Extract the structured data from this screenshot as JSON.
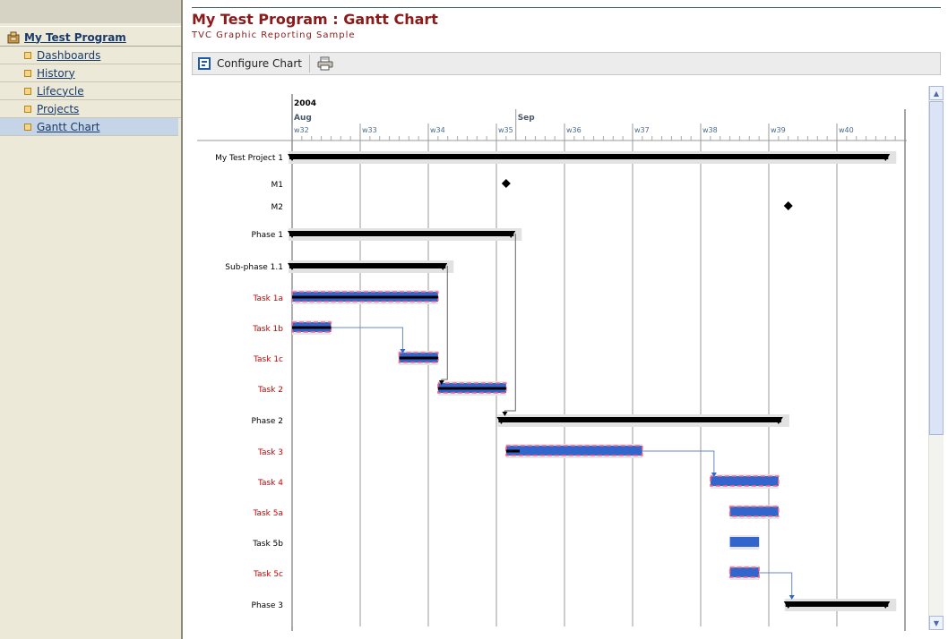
{
  "sidebar": {
    "root": {
      "label": "My Test Program",
      "icon": "program-icon"
    },
    "items": [
      {
        "label": "Dashboards",
        "active": false
      },
      {
        "label": "History",
        "active": false
      },
      {
        "label": "Lifecycle",
        "active": false
      },
      {
        "label": "Projects",
        "active": false
      },
      {
        "label": "Gantt Chart",
        "active": true
      }
    ]
  },
  "header": {
    "title": "My Test Program : Gantt Chart",
    "subtitle": "TVC Graphic Reporting Sample"
  },
  "toolbar": {
    "configure_label": "Configure Chart",
    "configure_icon": "configure-chart-icon",
    "print_icon": "print-icon"
  },
  "colors": {
    "title": "#8b1a1a",
    "task_bar": "#3366cc",
    "task_border": "#ff6688",
    "red_label": "#cc0000",
    "summary": "#000000"
  },
  "chart_data": {
    "type": "gantt",
    "year": "2004",
    "months": [
      {
        "label": "Aug",
        "start": 0
      },
      {
        "label": "Sep",
        "start": 23
      }
    ],
    "weeks": [
      {
        "label": "w32",
        "start": 0
      },
      {
        "label": "w33",
        "start": 7
      },
      {
        "label": "w34",
        "start": 14
      },
      {
        "label": "w35",
        "start": 21
      },
      {
        "label": "w36",
        "start": 28
      },
      {
        "label": "w37",
        "start": 35
      },
      {
        "label": "w38",
        "start": 42
      },
      {
        "label": "w39",
        "start": 49
      },
      {
        "label": "w40",
        "start": 56
      }
    ],
    "axis_range_days": [
      0,
      63
    ],
    "rows": [
      {
        "label": "My Test Project 1",
        "type": "summary",
        "start": 0,
        "end": 61
      },
      {
        "label": "M1",
        "type": "milestone",
        "at": 22
      },
      {
        "label": "M2",
        "type": "milestone",
        "at": 51
      },
      {
        "label": "Phase 1",
        "type": "summary",
        "start": 0,
        "end": 22.5
      },
      {
        "label": "Sub-phase 1.1",
        "type": "summary",
        "start": 0,
        "end": 15.5
      },
      {
        "label": "Task 1a",
        "type": "task",
        "start": 0,
        "end": 15,
        "progress": 1.0,
        "late": true
      },
      {
        "label": "Task 1b",
        "type": "task",
        "start": 0,
        "end": 4,
        "progress": 1.0,
        "late": true
      },
      {
        "label": "Task 1c",
        "type": "task",
        "start": 11,
        "end": 15,
        "progress": 1.0,
        "late": true
      },
      {
        "label": "Task 2",
        "type": "task",
        "start": 15,
        "end": 22,
        "progress": 1.0,
        "late": true
      },
      {
        "label": "Phase 2",
        "type": "summary",
        "start": 21.5,
        "end": 50
      },
      {
        "label": "Task 3",
        "type": "task",
        "start": 22,
        "end": 36,
        "progress": 0.1,
        "late": true
      },
      {
        "label": "Task 4",
        "type": "task",
        "start": 43,
        "end": 50,
        "progress": 0,
        "late": true
      },
      {
        "label": "Task 5a",
        "type": "task",
        "start": 45,
        "end": 50,
        "progress": 0,
        "late": true
      },
      {
        "label": "Task 5b",
        "type": "task",
        "start": 45,
        "end": 48,
        "progress": 0,
        "late": false
      },
      {
        "label": "Task 5c",
        "type": "task",
        "start": 45,
        "end": 48,
        "progress": 0,
        "late": true
      },
      {
        "label": "Phase 3",
        "type": "summary",
        "start": 51,
        "end": 61
      }
    ],
    "dependencies": [
      {
        "from": "Task 1b",
        "to": "Task 1c"
      },
      {
        "from": "Sub-phase 1.1",
        "to": "Task 2"
      },
      {
        "from": "Phase 1",
        "to": "Phase 2"
      },
      {
        "from": "Task 3",
        "to": "Task 4"
      },
      {
        "from": "Task 5c",
        "to": "Phase 3"
      }
    ]
  }
}
